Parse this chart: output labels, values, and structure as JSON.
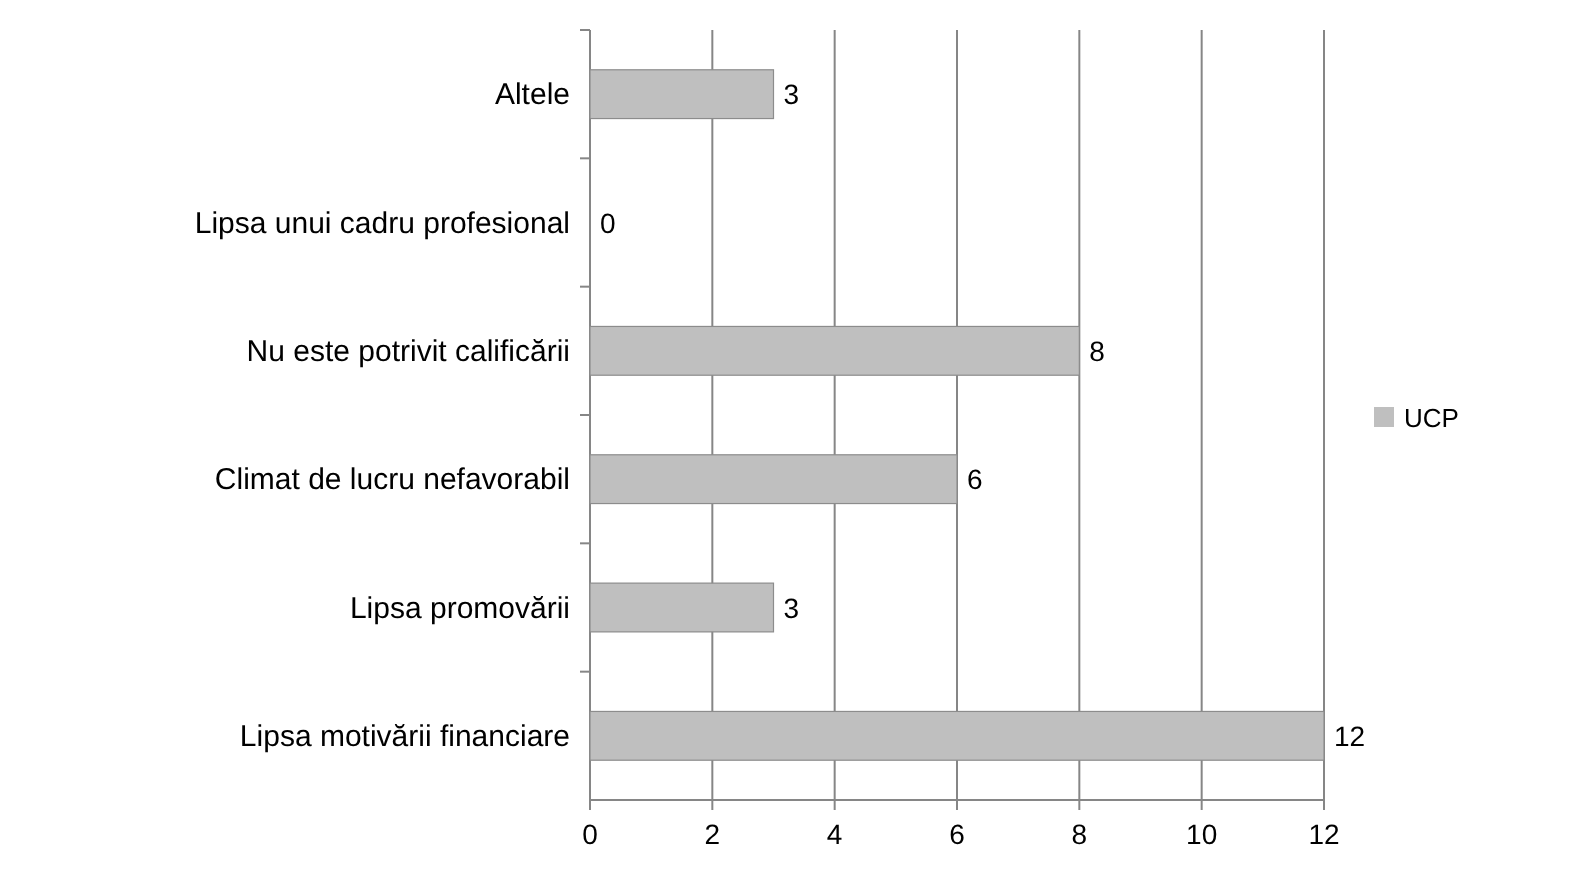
{
  "chart_data": {
    "type": "bar",
    "orientation": "horizontal",
    "categories": [
      "Altele",
      "Lipsa unui cadru profesional",
      "Nu este potrivit calificării",
      "Climat de lucru nefavorabil",
      "Lipsa promovării ",
      "Lipsa motivării financiare"
    ],
    "series": [
      {
        "name": "UCP",
        "color": "#bfbfbf",
        "values": [
          3,
          0,
          8,
          6,
          3,
          12
        ]
      }
    ],
    "xlim": [
      0,
      12
    ],
    "xticks": [
      0,
      2,
      4,
      6,
      8,
      10,
      12
    ],
    "grid": "x",
    "legend": "right",
    "data_labels": true
  }
}
